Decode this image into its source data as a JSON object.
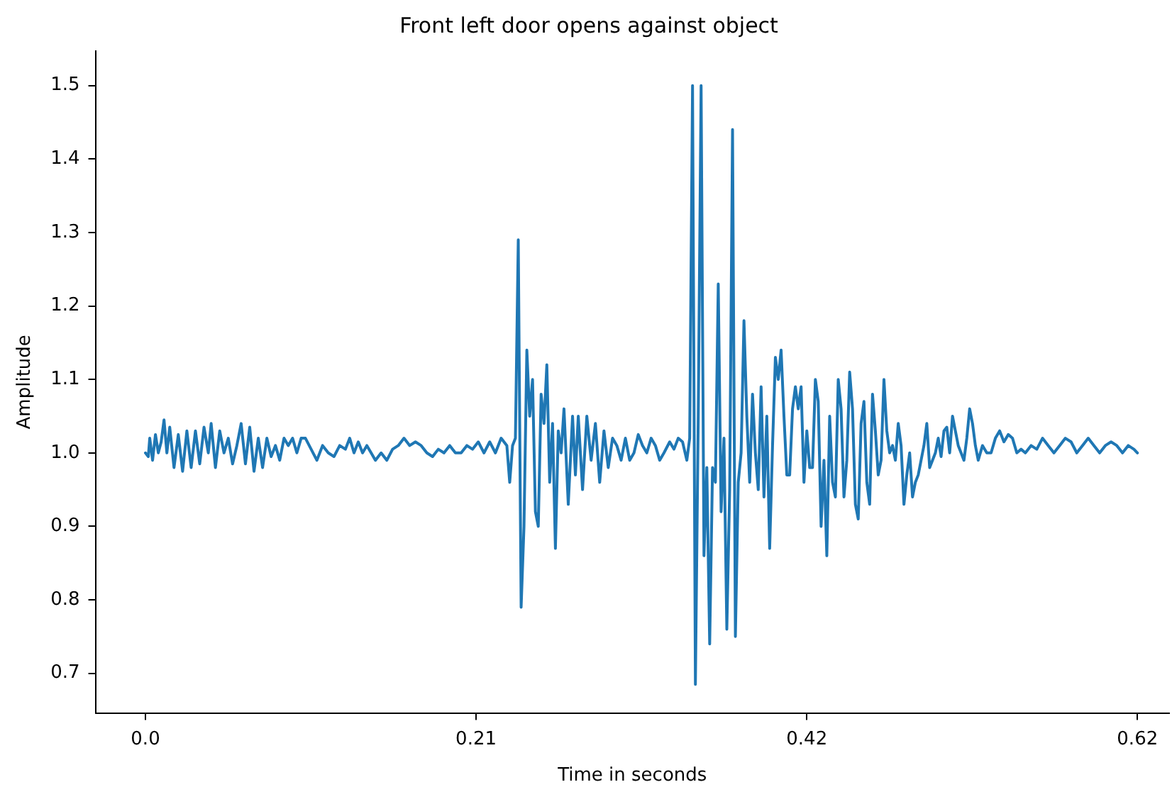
{
  "chart_data": {
    "type": "line",
    "title": "Front left door opens against object",
    "xlabel": "Time in seconds",
    "ylabel": "Amplitude",
    "xlim": [
      -0.0315,
      0.645
    ],
    "ylim": [
      0.646,
      1.547
    ],
    "xticks": [
      {
        "value": 0,
        "label": "0.0"
      },
      {
        "value": 0.2083,
        "label": "0.21"
      },
      {
        "value": 0.4167,
        "label": "0.42"
      },
      {
        "value": 0.625,
        "label": "0.62"
      }
    ],
    "yticks": [
      0.7,
      0.8,
      0.9,
      {
        "value": 1,
        "label": "1.0"
      },
      1.1,
      1.2,
      1.3,
      1.4,
      1.5
    ],
    "grid": false,
    "legend": false,
    "marker": "none",
    "line_style": "solid",
    "series": [
      {
        "color": "#1f77b4",
        "x": [
          0,
          0.0018,
          0.0027,
          0.0045,
          0.0063,
          0.0081,
          0.0099,
          0.0117,
          0.0135,
          0.0153,
          0.018,
          0.0207,
          0.0234,
          0.0261,
          0.0288,
          0.0315,
          0.0342,
          0.0369,
          0.0396,
          0.0414,
          0.0441,
          0.0468,
          0.0495,
          0.0522,
          0.0549,
          0.0576,
          0.0603,
          0.063,
          0.0657,
          0.0684,
          0.0711,
          0.0738,
          0.0765,
          0.0792,
          0.0819,
          0.0846,
          0.0873,
          0.09,
          0.0927,
          0.0954,
          0.0981,
          0.1008,
          0.1044,
          0.108,
          0.1116,
          0.1152,
          0.1188,
          0.1224,
          0.126,
          0.1287,
          0.1314,
          0.1341,
          0.1368,
          0.1395,
          0.1422,
          0.1449,
          0.1485,
          0.1521,
          0.1557,
          0.1593,
          0.1629,
          0.1665,
          0.1701,
          0.1737,
          0.1773,
          0.1809,
          0.1845,
          0.1881,
          0.1917,
          0.1953,
          0.1989,
          0.2025,
          0.2061,
          0.2097,
          0.2133,
          0.2169,
          0.2205,
          0.2241,
          0.2277,
          0.2295,
          0.2313,
          0.2331,
          0.2349,
          0.2367,
          0.2385,
          0.2403,
          0.2421,
          0.2439,
          0.2457,
          0.2475,
          0.2493,
          0.2511,
          0.2529,
          0.2547,
          0.2565,
          0.2583,
          0.2601,
          0.2619,
          0.2637,
          0.2664,
          0.2691,
          0.2709,
          0.2727,
          0.2754,
          0.2781,
          0.2808,
          0.2835,
          0.2862,
          0.2889,
          0.2916,
          0.2943,
          0.297,
          0.2997,
          0.3024,
          0.3051,
          0.3078,
          0.3105,
          0.3132,
          0.3159,
          0.3186,
          0.3213,
          0.324,
          0.3267,
          0.3303,
          0.333,
          0.3357,
          0.3384,
          0.3411,
          0.3429,
          0.3447,
          0.3465,
          0.3483,
          0.3501,
          0.3519,
          0.3537,
          0.3555,
          0.3573,
          0.3591,
          0.3609,
          0.3627,
          0.3645,
          0.3663,
          0.3681,
          0.3699,
          0.3717,
          0.3735,
          0.3753,
          0.3771,
          0.3789,
          0.3807,
          0.3825,
          0.3843,
          0.3861,
          0.3879,
          0.3897,
          0.3915,
          0.3933,
          0.3951,
          0.3969,
          0.3987,
          0.4005,
          0.4023,
          0.4041,
          0.4059,
          0.4077,
          0.4095,
          0.4113,
          0.4131,
          0.4149,
          0.4167,
          0.4185,
          0.4203,
          0.4221,
          0.4239,
          0.4257,
          0.4275,
          0.4293,
          0.4311,
          0.4329,
          0.4347,
          0.4365,
          0.4383,
          0.4401,
          0.4419,
          0.4437,
          0.4455,
          0.4473,
          0.4491,
          0.4509,
          0.4527,
          0.4545,
          0.4563,
          0.4581,
          0.4599,
          0.4617,
          0.4635,
          0.4653,
          0.4671,
          0.4689,
          0.4707,
          0.4725,
          0.4743,
          0.4761,
          0.4779,
          0.4797,
          0.4815,
          0.4833,
          0.4851,
          0.4869,
          0.4887,
          0.4905,
          0.4923,
          0.4941,
          0.4959,
          0.4977,
          0.4995,
          0.5013,
          0.5031,
          0.5049,
          0.5067,
          0.5085,
          0.5103,
          0.5121,
          0.5139,
          0.5157,
          0.5175,
          0.5193,
          0.5211,
          0.5229,
          0.5247,
          0.5274,
          0.5301,
          0.5328,
          0.5355,
          0.5382,
          0.5409,
          0.5436,
          0.5463,
          0.549,
          0.5517,
          0.5544,
          0.558,
          0.5616,
          0.5652,
          0.5688,
          0.5724,
          0.576,
          0.5796,
          0.5832,
          0.5868,
          0.5904,
          0.594,
          0.5976,
          0.6012,
          0.6048,
          0.6084,
          0.612,
          0.6156,
          0.6192,
          0.6228,
          0.625
        ],
        "values": [
          1.0,
          0.995,
          1.02,
          0.99,
          1.025,
          1.0,
          1.015,
          1.045,
          1.0,
          1.035,
          0.98,
          1.025,
          0.975,
          1.03,
          0.98,
          1.03,
          0.985,
          1.035,
          1.0,
          1.04,
          0.98,
          1.03,
          1.0,
          1.02,
          0.985,
          1.01,
          1.04,
          0.985,
          1.035,
          0.975,
          1.02,
          0.98,
          1.02,
          0.995,
          1.01,
          0.99,
          1.02,
          1.01,
          1.02,
          1.0,
          1.02,
          1.02,
          1.005,
          0.99,
          1.01,
          1.0,
          0.995,
          1.01,
          1.005,
          1.02,
          1.0,
          1.015,
          1.0,
          1.01,
          1.0,
          0.99,
          1.0,
          0.99,
          1.005,
          1.01,
          1.02,
          1.01,
          1.015,
          1.01,
          1.0,
          0.995,
          1.005,
          1.0,
          1.01,
          1.0,
          1.0,
          1.01,
          1.005,
          1.015,
          1.0,
          1.015,
          1.0,
          1.02,
          1.01,
          0.96,
          1.01,
          1.02,
          1.29,
          0.79,
          0.9,
          1.14,
          1.05,
          1.1,
          0.92,
          0.9,
          1.08,
          1.04,
          1.12,
          0.96,
          1.04,
          0.87,
          1.03,
          1.0,
          1.06,
          0.93,
          1.05,
          0.97,
          1.05,
          0.95,
          1.05,
          0.99,
          1.04,
          0.96,
          1.03,
          0.98,
          1.02,
          1.01,
          0.99,
          1.02,
          0.99,
          1.0,
          1.025,
          1.01,
          1.0,
          1.02,
          1.01,
          0.99,
          1.0,
          1.015,
          1.005,
          1.02,
          1.015,
          0.99,
          1.02,
          1.5,
          0.685,
          1.05,
          1.5,
          0.86,
          0.98,
          0.74,
          0.98,
          0.96,
          1.23,
          0.92,
          1.02,
          0.76,
          0.95,
          1.44,
          0.75,
          0.96,
          1.0,
          1.18,
          1.05,
          0.96,
          1.08,
          1.0,
          0.95,
          1.09,
          0.94,
          1.05,
          0.87,
          1.01,
          1.13,
          1.1,
          1.14,
          1.05,
          0.97,
          0.97,
          1.06,
          1.09,
          1.06,
          1.09,
          0.96,
          1.03,
          0.98,
          0.98,
          1.1,
          1.07,
          0.9,
          0.99,
          0.86,
          1.05,
          0.96,
          0.94,
          1.1,
          1.06,
          0.94,
          0.99,
          1.11,
          1.06,
          0.93,
          0.91,
          1.04,
          1.07,
          0.96,
          0.93,
          1.08,
          1.03,
          0.97,
          0.99,
          1.1,
          1.03,
          1.0,
          1.01,
          0.99,
          1.04,
          1.01,
          0.93,
          0.97,
          1.0,
          0.94,
          0.96,
          0.97,
          0.99,
          1.01,
          1.04,
          0.98,
          0.99,
          1.0,
          1.02,
          0.995,
          1.03,
          1.035,
          1.0,
          1.05,
          1.03,
          1.01,
          1.0,
          0.99,
          1.02,
          1.06,
          1.04,
          1.01,
          0.99,
          1.01,
          1.0,
          1.0,
          1.02,
          1.03,
          1.015,
          1.025,
          1.02,
          1.0,
          1.005,
          1.0,
          1.01,
          1.005,
          1.02,
          1.01,
          1.0,
          1.01,
          1.02,
          1.015,
          1.0,
          1.01,
          1.02,
          1.01,
          1.0,
          1.01,
          1.015,
          1.01,
          1.0,
          1.01,
          1.005,
          1.0
        ]
      }
    ]
  }
}
